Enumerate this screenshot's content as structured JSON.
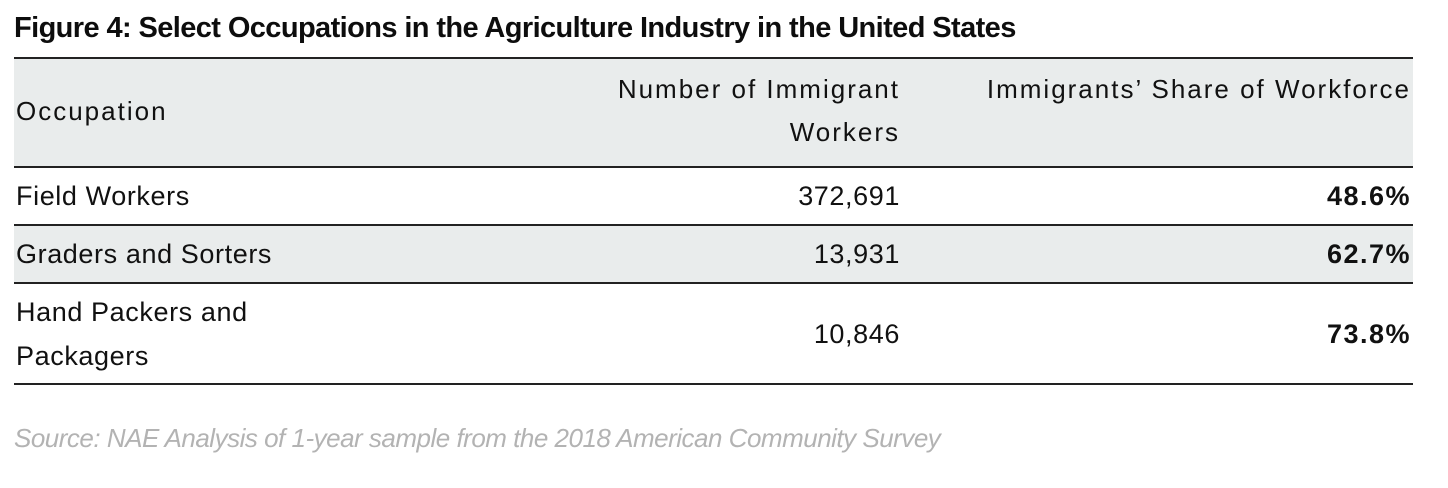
{
  "chart_data": {
    "type": "table",
    "title": "Figure 4: Select Occupations in the Agriculture Industry in the United States",
    "columns": [
      "Occupation",
      "Number of Immigrant Workers",
      "Immigrants’ Share of Workforce"
    ],
    "rows": [
      {
        "occupation": "Field Workers",
        "workers": "372,691",
        "share": "48.6%"
      },
      {
        "occupation": "Graders and Sorters",
        "workers": "13,931",
        "share": "62.7%"
      },
      {
        "occupation": "Hand Packers and Packagers",
        "workers": "10,846",
        "share": "73.8%"
      }
    ],
    "source": "Source: NAE Analysis of 1-year sample from the 2018 American Community Survey"
  }
}
